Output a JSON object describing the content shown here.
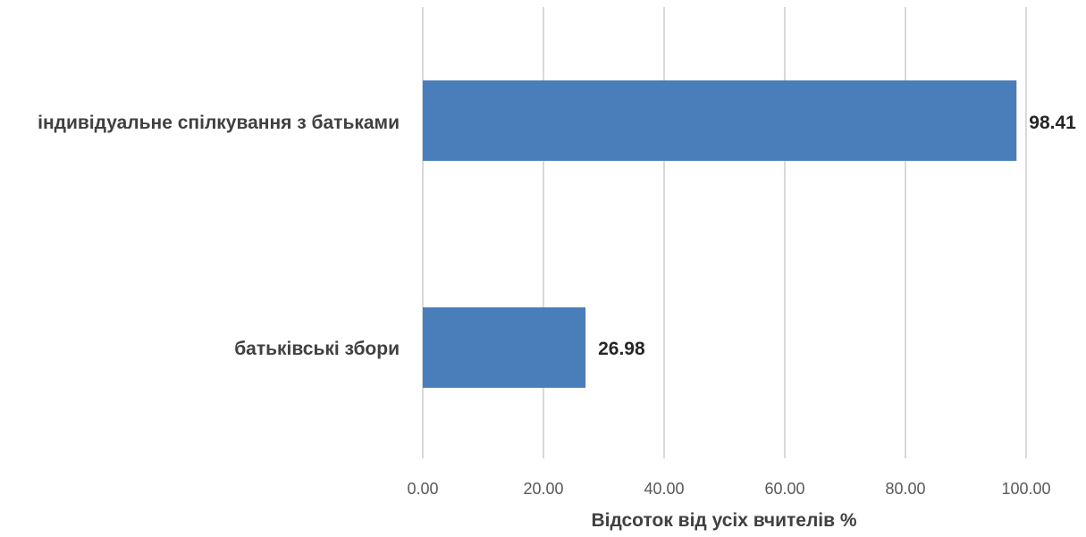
{
  "chart_data": {
    "type": "bar",
    "orientation": "horizontal",
    "categories": [
      "індивідуальне спілкування з батьками",
      "батьківські збори"
    ],
    "values": [
      98.41,
      26.98
    ],
    "data_labels": [
      "98.41",
      "26.98"
    ],
    "title": "",
    "xlabel": "Відсоток від усіх вчителів %",
    "ylabel": "",
    "xlim": [
      0,
      100
    ],
    "x_ticks": [
      0,
      20,
      40,
      60,
      80,
      100
    ],
    "x_tick_labels": [
      "0.00",
      "20.00",
      "40.00",
      "60.00",
      "80.00",
      "100.00"
    ],
    "grid": "vertical",
    "legend": "none",
    "bar_color": "#4a7ebb"
  }
}
